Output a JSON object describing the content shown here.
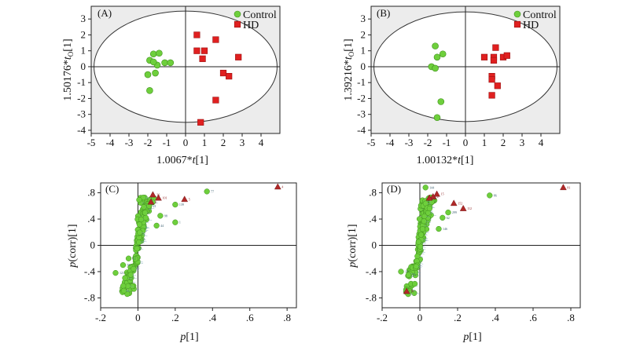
{
  "chart_data": [
    {
      "type": "scatter",
      "panel": "(A)",
      "xlabel_coef": "1.0067*",
      "xlabel_var": "t",
      "xlabel_suffix": "[1]",
      "ylabel_coef": "1.50176*",
      "ylabel_var": "t",
      "ylabel_sub": "O",
      "ylabel_suffix": "[1]",
      "xlim": [
        -5,
        5
      ],
      "ylim": [
        -4.2,
        3.8
      ],
      "xticks": [
        -5,
        -4,
        -3,
        -2,
        -1,
        0,
        1,
        2,
        3,
        4
      ],
      "yticks": [
        -4,
        -3,
        -2,
        -1,
        0,
        1,
        2,
        3
      ],
      "ellipse": {
        "rx": 4.85,
        "ry": 3.5
      },
      "legend": [
        "Control",
        "HD"
      ],
      "series": [
        {
          "name": "Control",
          "marker": "circle",
          "color": "#6ecf3c",
          "x": [
            -1.7,
            -1.4,
            -1.9,
            -1.5,
            -1.7,
            -1.1,
            -0.8,
            -2.0,
            -1.6,
            -1.9
          ],
          "y": [
            0.8,
            0.85,
            0.4,
            0.1,
            0.3,
            0.25,
            0.25,
            -0.5,
            -0.4,
            -1.5
          ]
        },
        {
          "name": "HD",
          "marker": "square",
          "color": "#e02020",
          "x": [
            0.6,
            0.6,
            1.0,
            0.9,
            1.6,
            2.8,
            2.0,
            2.3,
            1.6,
            0.8
          ],
          "y": [
            2.0,
            1.0,
            1.0,
            0.5,
            1.7,
            0.6,
            -0.4,
            -0.6,
            -2.1,
            -3.5
          ]
        }
      ]
    },
    {
      "type": "scatter",
      "panel": "(B)",
      "xlabel_coef": "1.00132*",
      "xlabel_var": "t",
      "xlabel_suffix": "[1]",
      "ylabel_coef": "1.39216*",
      "ylabel_var": "t",
      "ylabel_sub": "O",
      "ylabel_suffix": "[1]",
      "xlim": [
        -5,
        5
      ],
      "ylim": [
        -4.2,
        3.8
      ],
      "xticks": [
        -5,
        -4,
        -3,
        -2,
        -1,
        0,
        1,
        2,
        3,
        4
      ],
      "yticks": [
        -4,
        -3,
        -2,
        -1,
        0,
        1,
        2,
        3
      ],
      "ellipse": {
        "rx": 4.85,
        "ry": 3.45
      },
      "legend": [
        "Control",
        "HD"
      ],
      "series": [
        {
          "name": "Control",
          "marker": "circle",
          "color": "#6ecf3c",
          "x": [
            -1.6,
            -1.2,
            -1.5,
            -1.8,
            -1.6,
            -1.3,
            -1.5
          ],
          "y": [
            1.3,
            0.8,
            0.6,
            0.0,
            -0.1,
            -2.2,
            -3.2
          ]
        },
        {
          "name": "HD",
          "marker": "square",
          "color": "#e02020",
          "x": [
            1.6,
            1.0,
            1.5,
            1.5,
            2.0,
            2.2,
            1.4,
            1.4,
            1.7,
            1.4
          ],
          "y": [
            1.2,
            0.6,
            0.6,
            0.4,
            0.6,
            0.7,
            -0.6,
            -0.8,
            -1.2,
            -1.8
          ]
        }
      ]
    },
    {
      "type": "scatter",
      "panel": "(C)",
      "xlabel_var": "p",
      "xlabel_suffix": "[1]",
      "ylabel_var": "p",
      "ylabel_suffix": "(corr)[1]",
      "xlim": [
        -0.2,
        0.85
      ],
      "ylim": [
        -0.95,
        0.95
      ],
      "xticks": [
        -0.2,
        0,
        0.2,
        0.4,
        0.6,
        0.8
      ],
      "yticks": [
        -0.8,
        -0.4,
        0,
        0.4,
        0.8
      ],
      "cloud": {
        "color": "#6ecf3c",
        "seed": 11,
        "count": 170
      },
      "green_points": [
        {
          "x": 0.37,
          "y": 0.82,
          "label": "77"
        },
        {
          "x": 0.2,
          "y": 0.62,
          "label": "139"
        },
        {
          "x": 0.2,
          "y": 0.35,
          "label": "1"
        },
        {
          "x": 0.12,
          "y": 0.45,
          "label": "98"
        },
        {
          "x": -0.12,
          "y": -0.42,
          "label": "121"
        },
        {
          "x": -0.08,
          "y": -0.3,
          "label": "58"
        },
        {
          "x": -0.05,
          "y": -0.2,
          "label": "12"
        },
        {
          "x": 0.1,
          "y": 0.3,
          "label": "44"
        },
        {
          "x": 0.06,
          "y": 0.6,
          "label": "21"
        }
      ],
      "red_points": [
        {
          "x": 0.75,
          "y": 0.89,
          "label": "4"
        },
        {
          "x": 0.08,
          "y": 0.77,
          "label": "36"
        },
        {
          "x": 0.11,
          "y": 0.72,
          "label": "101"
        },
        {
          "x": 0.25,
          "y": 0.7,
          "label": "5"
        },
        {
          "x": 0.07,
          "y": 0.66,
          "label": "2"
        }
      ]
    },
    {
      "type": "scatter",
      "panel": "(D)",
      "xlabel_var": "p",
      "xlabel_suffix": "[1]",
      "ylabel_var": "p",
      "ylabel_suffix": "(corr)[1]",
      "xlim": [
        -0.2,
        0.85
      ],
      "ylim": [
        -0.95,
        0.95
      ],
      "xticks": [
        -0.2,
        0,
        0.2,
        0.4,
        0.6,
        0.8
      ],
      "yticks": [
        -0.8,
        -0.4,
        0,
        0.4,
        0.8
      ],
      "cloud": {
        "color": "#6ecf3c",
        "seed": 29,
        "count": 175
      },
      "green_points": [
        {
          "x": 0.37,
          "y": 0.76,
          "label": "86"
        },
        {
          "x": 0.03,
          "y": 0.88,
          "label": "144"
        },
        {
          "x": 0.15,
          "y": 0.5,
          "label": "299"
        },
        {
          "x": 0.12,
          "y": 0.42,
          "label": "62"
        },
        {
          "x": -0.1,
          "y": -0.4,
          "label": "111"
        },
        {
          "x": -0.06,
          "y": -0.45,
          "label": "33"
        },
        {
          "x": 0.1,
          "y": 0.25,
          "label": "146"
        }
      ],
      "red_points": [
        {
          "x": 0.76,
          "y": 0.88,
          "label": "81"
        },
        {
          "x": 0.09,
          "y": 0.78,
          "label": "15"
        },
        {
          "x": 0.07,
          "y": 0.74,
          "label": "2"
        },
        {
          "x": 0.18,
          "y": 0.64,
          "label": "152"
        },
        {
          "x": 0.23,
          "y": 0.56,
          "label": "112"
        },
        {
          "x": 0.05,
          "y": 0.72,
          "label": "29"
        },
        {
          "x": -0.07,
          "y": -0.7,
          "label": "70"
        }
      ]
    }
  ]
}
